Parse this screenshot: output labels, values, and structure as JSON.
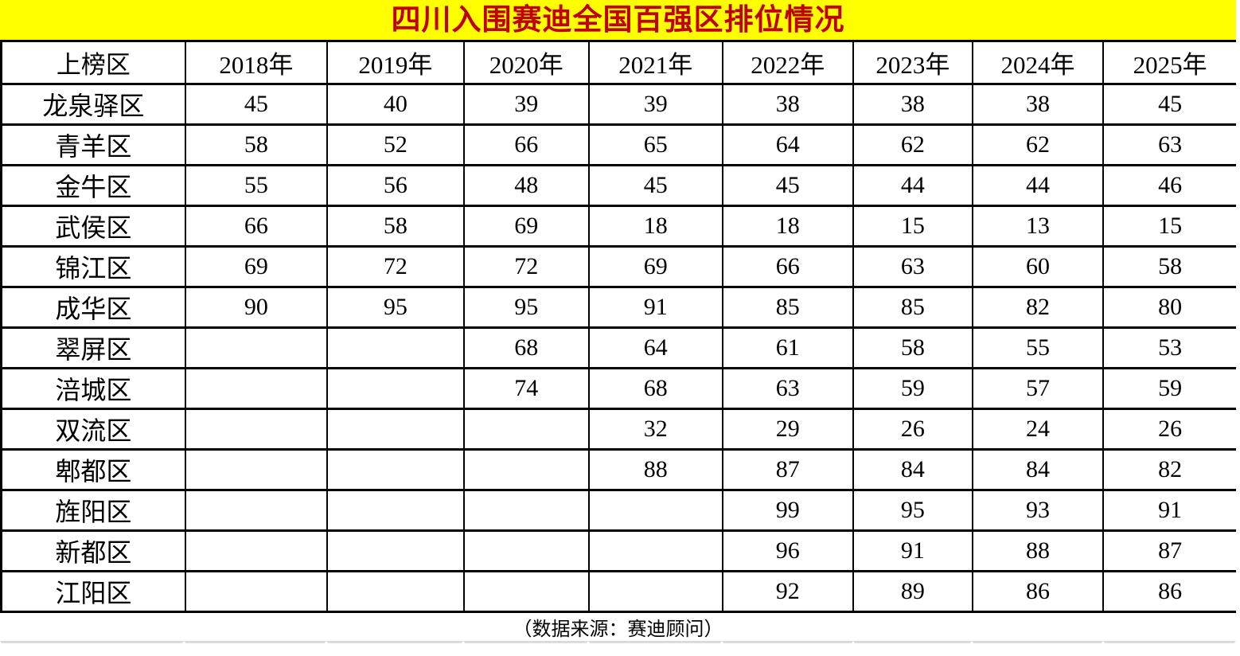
{
  "title": "四川入围赛迪全国百强区排位情况",
  "source_note": "（数据来源：赛迪顾问）",
  "colors": {
    "title_bg": "#ffff00",
    "title_text": "#c00000",
    "table_border": "#000000",
    "cell_bg": "#ffffff",
    "body_text": "#000000",
    "bottom_gridline": "#dcdcdc"
  },
  "chart_data": {
    "type": "table",
    "title": "四川入围赛迪全国百强区排位情况",
    "corner_header": "上榜区",
    "categories": [
      "2018年",
      "2019年",
      "2020年",
      "2021年",
      "2022年",
      "2023年",
      "2024年",
      "2025年"
    ],
    "series": [
      {
        "name": "龙泉驿区",
        "values": [
          45,
          40,
          39,
          39,
          38,
          38,
          38,
          45
        ]
      },
      {
        "name": "青羊区",
        "values": [
          58,
          52,
          66,
          65,
          64,
          62,
          62,
          63
        ]
      },
      {
        "name": "金牛区",
        "values": [
          55,
          56,
          48,
          45,
          45,
          44,
          44,
          46
        ]
      },
      {
        "name": "武侯区",
        "values": [
          66,
          58,
          69,
          18,
          18,
          15,
          13,
          15
        ]
      },
      {
        "name": "锦江区",
        "values": [
          69,
          72,
          72,
          69,
          66,
          63,
          60,
          58
        ]
      },
      {
        "name": "成华区",
        "values": [
          90,
          95,
          95,
          91,
          85,
          85,
          82,
          80
        ]
      },
      {
        "name": "翠屏区",
        "values": [
          null,
          null,
          68,
          64,
          61,
          58,
          55,
          53
        ]
      },
      {
        "name": "涪城区",
        "values": [
          null,
          null,
          74,
          68,
          63,
          59,
          57,
          59
        ]
      },
      {
        "name": "双流区",
        "values": [
          null,
          null,
          null,
          32,
          29,
          26,
          24,
          26
        ]
      },
      {
        "name": "郫都区",
        "values": [
          null,
          null,
          null,
          88,
          87,
          84,
          84,
          82
        ]
      },
      {
        "name": "旌阳区",
        "values": [
          null,
          null,
          null,
          null,
          99,
          95,
          93,
          91
        ]
      },
      {
        "name": "新都区",
        "values": [
          null,
          null,
          null,
          null,
          96,
          91,
          88,
          87
        ]
      },
      {
        "name": "江阳区",
        "values": [
          null,
          null,
          null,
          null,
          92,
          89,
          86,
          86
        ]
      }
    ],
    "source_note": "（数据来源：赛迪顾问）"
  }
}
